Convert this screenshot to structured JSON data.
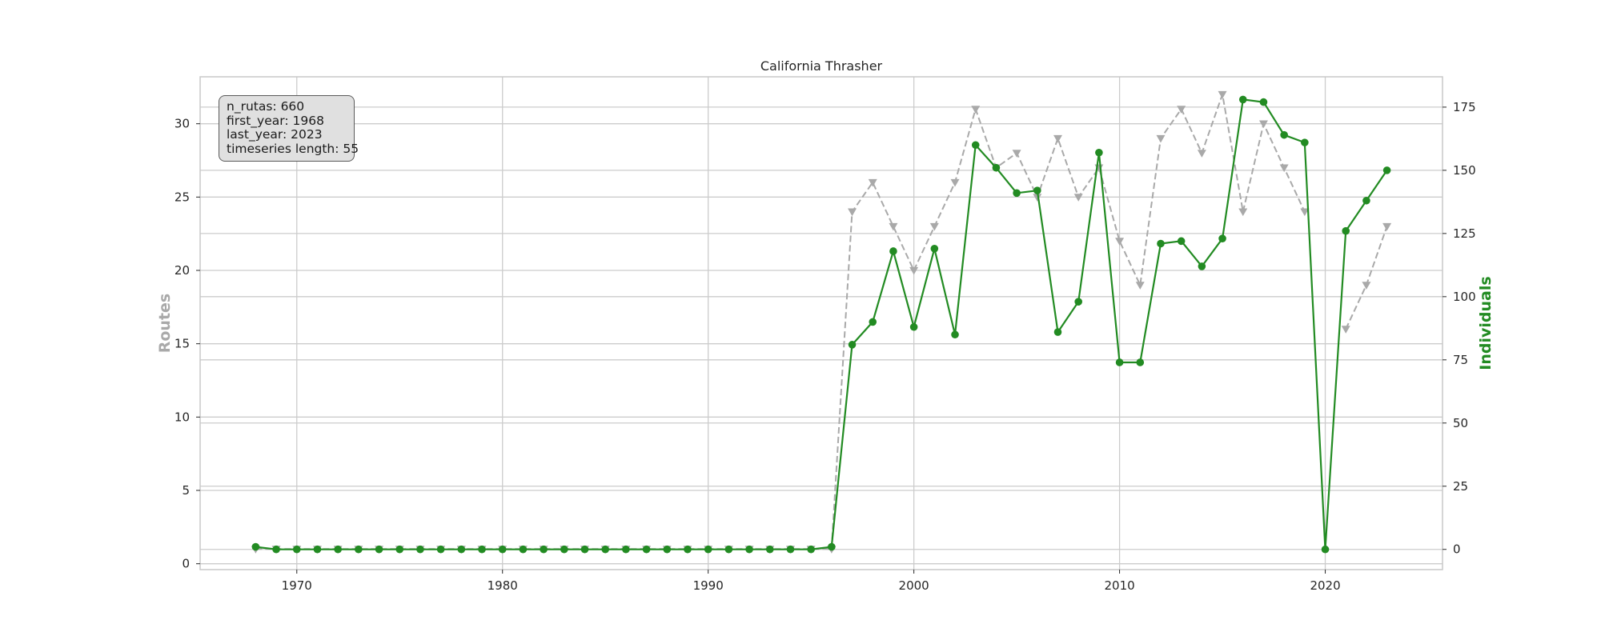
{
  "chart_data": {
    "type": "line",
    "title": "California Thrasher",
    "xlabel": "",
    "ylabel_left": "Routes",
    "ylabel_right": "Individuals",
    "xlim": [
      1965.3,
      2025.7
    ],
    "ylim_left": [
      -0.4,
      33.2
    ],
    "ylim_right": [
      -8,
      187
    ],
    "x_ticks": [
      1970,
      1980,
      1990,
      2000,
      2010,
      2020
    ],
    "y_left_ticks": [
      0,
      5,
      10,
      15,
      20,
      25,
      30
    ],
    "y_right_ticks": [
      0,
      25,
      50,
      75,
      100,
      125,
      150,
      175
    ],
    "grid": true,
    "x": [
      1968,
      1969,
      1970,
      1971,
      1972,
      1973,
      1974,
      1975,
      1976,
      1977,
      1978,
      1979,
      1980,
      1981,
      1982,
      1983,
      1984,
      1985,
      1986,
      1987,
      1988,
      1989,
      1990,
      1991,
      1992,
      1993,
      1994,
      1995,
      1996,
      1997,
      1998,
      1999,
      2000,
      2001,
      2002,
      2003,
      2004,
      2005,
      2006,
      2007,
      2008,
      2009,
      2010,
      2011,
      2012,
      2013,
      2014,
      2015,
      2016,
      2017,
      2018,
      2019,
      2020,
      2021,
      2022,
      2023
    ],
    "series": [
      {
        "name": "",
        "axis": "left",
        "color": "#a9a9a9",
        "style": "dashed",
        "marker": "triangle-down",
        "values": [
          1,
          1,
          1,
          1,
          1,
          1,
          1,
          1,
          1,
          1,
          1,
          1,
          1,
          1,
          1,
          1,
          1,
          1,
          1,
          1,
          1,
          1,
          1,
          1,
          1,
          1,
          1,
          1,
          1,
          24,
          26,
          23,
          20,
          23,
          26,
          31,
          27,
          28,
          25,
          29,
          25,
          27,
          22,
          19,
          29,
          31,
          28,
          32,
          24,
          30,
          27,
          24,
          null,
          16,
          19,
          23
        ]
      },
      {
        "name": "",
        "axis": "right",
        "color": "#228b22",
        "style": "solid",
        "marker": "circle",
        "values": [
          1,
          0,
          0,
          0,
          0,
          0,
          0,
          0,
          0,
          0,
          0,
          0,
          0,
          0,
          0,
          0,
          0,
          0,
          0,
          0,
          0,
          0,
          0,
          0,
          0,
          0,
          0,
          0,
          1,
          81,
          90,
          118,
          88,
          119,
          85,
          160,
          151,
          141,
          142,
          86,
          98,
          157,
          74,
          74,
          121,
          122,
          112,
          123,
          178,
          177,
          164,
          161,
          0,
          126,
          138,
          150
        ]
      }
    ]
  },
  "info_box": {
    "n_rutas": "n_rutas: 660",
    "first_year": "first_year: 1968",
    "last_year": "last_year: 2023",
    "length": "timeseries length: 55"
  },
  "colors": {
    "routes": "#a9a9a9",
    "individuals": "#228b22",
    "grid": "#cccccc",
    "axes_edge": "#c8c8c8"
  }
}
